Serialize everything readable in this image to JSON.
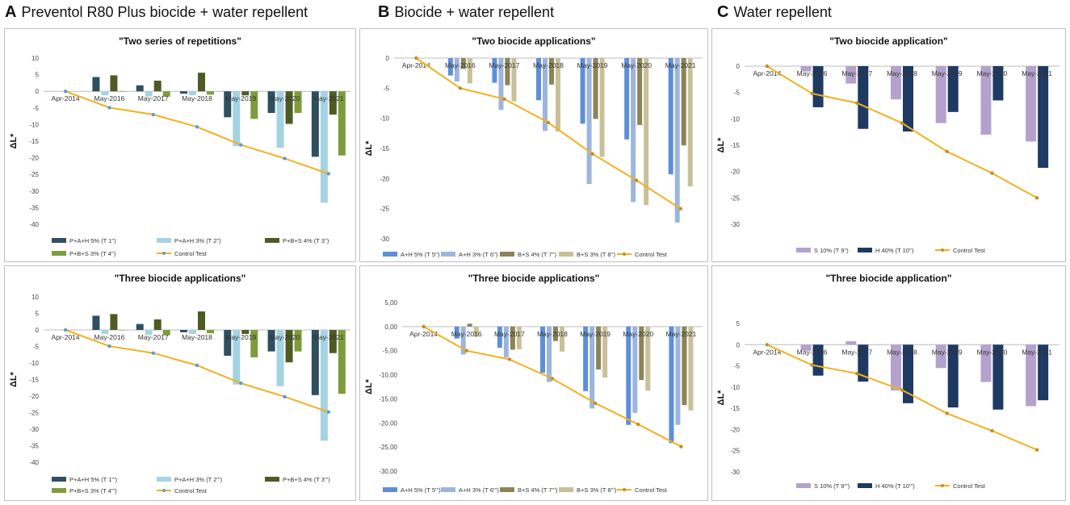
{
  "headers": [
    {
      "letter": "A",
      "text": "Preventol R80 Plus biocide + water repellent"
    },
    {
      "letter": "B",
      "text": "Biocide + water repellent"
    },
    {
      "letter": "C",
      "text": "Water repellent"
    }
  ],
  "colors": {
    "p_ah5": "#2e5060",
    "p_ah3": "#a6d3e2",
    "p_bs4": "#4d5c23",
    "p_bs3": "#7e9c3c",
    "b_ah5": "#5d8fd9",
    "b_ah3": "#9db5dd",
    "b_bs4": "#8c8456",
    "b_bs3": "#c9c09a",
    "c_s10": "#b4a2cc",
    "c_h40": "#1f3a62",
    "control": "#f2b11f",
    "control_marker_a": "#5b9bd5",
    "control_marker_bc": "#c09020"
  },
  "chart_data": [
    {
      "id": "A1",
      "type": "bar",
      "title": "\"Two series of repetitions\"",
      "categories": [
        "Apr-2014",
        "May-2016",
        "May-2017",
        "May-2018",
        "May-2019",
        "May-2020",
        "May-2021"
      ],
      "ylabel": "ΔL*",
      "ylim": [
        -40,
        10
      ],
      "yticks": [
        10,
        5,
        0,
        -5,
        -10,
        -15,
        -20,
        -25,
        -30,
        -35,
        -40
      ],
      "series": [
        {
          "name": "P+A+H 5% (T 1'')",
          "values": [
            null,
            4.3,
            1.8,
            -0.7,
            -7.8,
            -6.5,
            -19.7
          ]
        },
        {
          "name": "P+A+H 3% (T 2'')",
          "values": [
            null,
            -1.2,
            -1.5,
            -1.2,
            -16.5,
            -17.0,
            -33.5
          ]
        },
        {
          "name": "P+B+S 4% (T 3'')",
          "values": [
            null,
            4.8,
            3.2,
            5.6,
            -1.2,
            -9.8,
            -7.0
          ]
        },
        {
          "name": "P+B+S 3% (T 4'')",
          "values": [
            null,
            0.0,
            -1.6,
            -1.0,
            -8.3,
            -6.5,
            -19.3
          ]
        }
      ],
      "control": {
        "name": "Control Test",
        "values": [
          0,
          -4.9,
          -7.0,
          -10.7,
          -16.1,
          -20.2,
          -24.8
        ]
      }
    },
    {
      "id": "A2",
      "type": "bar",
      "title": "\"Three biocide  applications\"",
      "categories": [
        "Apr-2014",
        "May-2016",
        "May-2017",
        "May-2018",
        "May-2019",
        "May-2020",
        "May-2021"
      ],
      "ylabel": "ΔL*",
      "ylim": [
        -40,
        10
      ],
      "yticks": [
        10,
        5,
        0,
        -5,
        -10,
        -15,
        -20,
        -25,
        -30,
        -35,
        -40
      ],
      "series": [
        {
          "name": "P+A+H 5% (T 1''')",
          "values": [
            null,
            4.3,
            1.8,
            -0.7,
            -7.8,
            -6.5,
            -19.7
          ]
        },
        {
          "name": "P+A+H 3% (T 2''')",
          "values": [
            null,
            -1.2,
            -1.5,
            -1.2,
            -16.5,
            -17.0,
            -33.5
          ]
        },
        {
          "name": "P+B+S 4% (T 3''')",
          "values": [
            null,
            4.8,
            3.2,
            5.6,
            -1.2,
            -9.8,
            -7.0
          ]
        },
        {
          "name": "P+B+S 3% (T 4''')",
          "values": [
            null,
            0.0,
            -1.6,
            -1.0,
            -8.3,
            -6.5,
            -19.3
          ]
        }
      ],
      "control": {
        "name": "Control Test",
        "values": [
          0,
          -4.9,
          -7.0,
          -10.7,
          -16.1,
          -20.2,
          -24.8
        ]
      }
    },
    {
      "id": "B1",
      "type": "bar",
      "title": "\"Two biocide applications\"",
      "categories": [
        "Apr-2014",
        "May-2016",
        "May-2017",
        "May-2018",
        "May-2019",
        "May-2020",
        "May-2021"
      ],
      "ylabel": "ΔL*",
      "ylim": [
        -30,
        0
      ],
      "yticks": [
        0,
        -5,
        -10,
        -15,
        -20,
        -25,
        -30
      ],
      "series": [
        {
          "name": "A+H 5% (T 5'')",
          "values": [
            null,
            -2.9,
            -4.1,
            -7.0,
            -10.9,
            -13.5,
            -19.3
          ]
        },
        {
          "name": "A+H 3% (T 6'')",
          "values": [
            null,
            -3.9,
            -8.6,
            -12.1,
            -20.9,
            -23.9,
            -27.3
          ]
        },
        {
          "name": "B+S 4% (T 7'')",
          "values": [
            null,
            -1.8,
            -4.5,
            -4.4,
            -10.1,
            -11.1,
            -14.5
          ]
        },
        {
          "name": "B+S 3% (T 8'')",
          "values": [
            null,
            -4.2,
            -7.2,
            -12.2,
            -16.4,
            -24.4,
            -21.3
          ]
        }
      ],
      "control": {
        "name": "Control Test",
        "values": [
          0,
          -5.0,
          -6.8,
          -10.7,
          -15.9,
          -20.3,
          -25.0
        ]
      }
    },
    {
      "id": "B2",
      "type": "bar",
      "title": "\"Three biocide applications\"",
      "categories": [
        "Apr-2014",
        "May-2016",
        "May-2017",
        "May-2018",
        "May-2019",
        "May-2020",
        "May-2021"
      ],
      "ylabel": "ΔL*",
      "ylim": [
        -30,
        5
      ],
      "yticks": [
        "5,00",
        "0,00",
        "-5,00",
        "-10,00",
        "-15,00",
        "-20,00",
        "-25,00",
        "-30,00"
      ],
      "series": [
        {
          "name": "A+H 5% (T 5''')",
          "values": [
            null,
            -2.5,
            -4.4,
            -9.6,
            -13.4,
            -20.4,
            -24.2
          ]
        },
        {
          "name": "A+H 3% (T 6''')",
          "values": [
            null,
            -5.8,
            -6.4,
            -11.5,
            -17.0,
            -17.9,
            -20.4
          ]
        },
        {
          "name": "B+S 4% (T 7''')",
          "values": [
            null,
            0.6,
            -4.8,
            -3.0,
            -8.9,
            -11.1,
            -16.3
          ]
        },
        {
          "name": "B+S 3% (T 8''')",
          "values": [
            null,
            -2.1,
            -4.7,
            -5.2,
            -10.6,
            -13.3,
            -17.4
          ]
        }
      ],
      "control": {
        "name": "Control Test",
        "values": [
          0,
          -5.0,
          -6.8,
          -10.8,
          -15.9,
          -20.3,
          -24.9
        ]
      }
    },
    {
      "id": "C1",
      "type": "bar",
      "title": "\"Two biocide application\"",
      "categories": [
        "Apr-2014",
        "May-2016",
        "May-2017",
        "May-2018",
        "May-2019",
        "May-2020",
        "May-2021"
      ],
      "ylabel": "ΔL*",
      "ylim": [
        -30,
        0
      ],
      "yticks": [
        0,
        -5,
        -10,
        -15,
        -20,
        -25,
        -30
      ],
      "series": [
        {
          "name": "S 10% (T 9'')",
          "values": [
            null,
            -1.0,
            -3.3,
            -6.3,
            -10.8,
            -13.0,
            -14.3
          ]
        },
        {
          "name": "H 40% (T 10'')",
          "values": [
            null,
            -7.8,
            -11.9,
            -12.4,
            -8.7,
            -6.5,
            -19.3
          ]
        }
      ],
      "control": {
        "name": "Control Test",
        "values": [
          0,
          -5.2,
          -7.0,
          -10.8,
          -16.2,
          -20.3,
          -25.0
        ]
      }
    },
    {
      "id": "C2",
      "type": "bar",
      "title": "\"Three biocide application\"",
      "categories": [
        "Apr-2014",
        "May-2016",
        "May-2017",
        "May-2018",
        "May-2019",
        "May-2020",
        "May-2021"
      ],
      "ylabel": "ΔL*",
      "ylim": [
        -30,
        5
      ],
      "yticks": [
        5,
        0,
        -5,
        -10,
        -15,
        -20,
        -25,
        -30
      ],
      "series": [
        {
          "name": "S 10% (T 9''')",
          "values": [
            null,
            -1.4,
            0.8,
            -10.8,
            -5.5,
            -8.8,
            -14.5
          ]
        },
        {
          "name": "H 40% (T 10''')",
          "values": [
            null,
            -7.3,
            -8.7,
            -13.8,
            -14.8,
            -15.3,
            -13.1
          ]
        }
      ],
      "control": {
        "name": "Control Test",
        "values": [
          0,
          -4.8,
          -6.8,
          -10.7,
          -16.2,
          -20.3,
          -24.8
        ]
      }
    }
  ]
}
